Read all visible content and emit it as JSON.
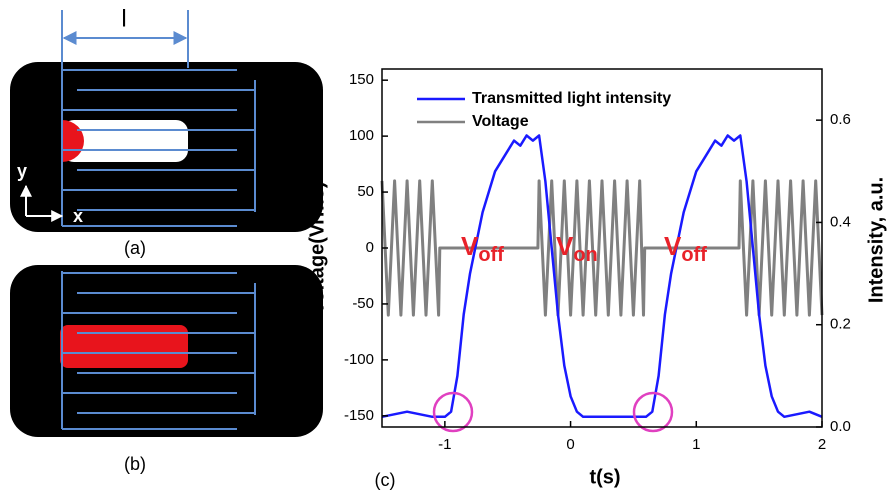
{
  "panels": {
    "dimension": "l",
    "axis_y": "y",
    "axis_x": "x",
    "label_a": "(a)",
    "label_b": "(b)",
    "label_c": "(c)"
  },
  "chart_data": {
    "type": "line",
    "x_label": "t(s)",
    "y_label": "Voltage(Vrms)",
    "y2_label": "Intensity, a.u.",
    "xlim": [
      -1.5,
      2
    ],
    "xticks": [
      -1,
      0,
      1,
      2
    ],
    "ylim": [
      -160,
      160
    ],
    "yticks": [
      -150,
      -100,
      -50,
      0,
      50,
      100,
      150
    ],
    "y2lim": [
      0,
      0.7
    ],
    "y2ticks": [
      {
        "value": 0,
        "label": "0.0"
      },
      0.2,
      0.4,
      0.6
    ],
    "legend": "upper left",
    "annotations": [
      {
        "text": "V",
        "sub": "off"
      },
      {
        "text": "V",
        "sub": "on"
      },
      {
        "text": "V",
        "sub": "off"
      }
    ],
    "series": [
      {
        "name": "Transmitted light intensity",
        "color": "#1a1aff",
        "axis": "y2",
        "x": [
          -1.5,
          -1.3,
          -1.1,
          -1.0,
          -0.95,
          -0.9,
          -0.85,
          -0.8,
          -0.7,
          -0.6,
          -0.5,
          -0.45,
          -0.4,
          -0.35,
          -0.3,
          -0.25,
          -0.2,
          -0.15,
          -0.1,
          -0.05,
          0,
          0.05,
          0.1,
          0.3,
          0.5,
          0.6,
          0.65,
          0.7,
          0.75,
          0.8,
          0.9,
          1.0,
          1.1,
          1.15,
          1.2,
          1.25,
          1.3,
          1.35,
          1.4,
          1.45,
          1.5,
          1.55,
          1.6,
          1.65,
          1.7,
          1.9,
          2.0
        ],
        "values": [
          0.02,
          0.03,
          0.02,
          0.02,
          0.03,
          0.1,
          0.22,
          0.3,
          0.42,
          0.5,
          0.54,
          0.56,
          0.55,
          0.57,
          0.56,
          0.57,
          0.48,
          0.35,
          0.22,
          0.12,
          0.06,
          0.03,
          0.02,
          0.02,
          0.02,
          0.02,
          0.03,
          0.1,
          0.22,
          0.3,
          0.42,
          0.5,
          0.54,
          0.56,
          0.55,
          0.57,
          0.56,
          0.57,
          0.48,
          0.35,
          0.22,
          0.12,
          0.06,
          0.03,
          0.02,
          0.03,
          0.02
        ]
      },
      {
        "name": "Voltage",
        "color": "#808080",
        "x": [
          -1.5,
          -1.45,
          -1.4,
          -1.35,
          -1.3,
          -1.25,
          -1.2,
          -1.15,
          -1.1,
          -1.05,
          -1.04,
          -0.26,
          -0.25,
          -0.2,
          -0.15,
          -0.1,
          -0.05,
          0,
          0.05,
          0.1,
          0.15,
          0.2,
          0.25,
          0.3,
          0.35,
          0.4,
          0.45,
          0.5,
          0.55,
          0.58,
          0.59,
          1.34,
          1.35,
          1.4,
          1.45,
          1.5,
          1.55,
          1.6,
          1.65,
          1.7,
          1.75,
          1.8,
          1.85,
          1.9,
          1.95,
          2.0
        ],
        "values": [
          60,
          -60,
          60,
          -60,
          60,
          -60,
          60,
          -60,
          60,
          -60,
          0,
          0,
          60,
          -60,
          60,
          -60,
          60,
          -60,
          60,
          -60,
          60,
          -60,
          60,
          -60,
          60,
          -60,
          60,
          -60,
          60,
          -60,
          0,
          0,
          60,
          -60,
          60,
          -60,
          60,
          -60,
          60,
          -60,
          60,
          -60,
          60,
          -60,
          60,
          -60
        ]
      }
    ]
  }
}
